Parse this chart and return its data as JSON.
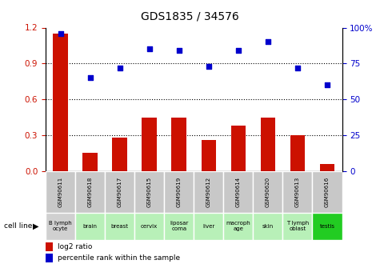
{
  "title": "GDS1835 / 34576",
  "gsm_labels": [
    "GSM90611",
    "GSM90618",
    "GSM90617",
    "GSM90615",
    "GSM90619",
    "GSM90612",
    "GSM90614",
    "GSM90620",
    "GSM90613",
    "GSM90616"
  ],
  "cell_lines": [
    "B lymph\nocyte",
    "brain",
    "breast",
    "cervix",
    "liposar\ncoma",
    "liver",
    "macroph\nage",
    "skin",
    "T lymph\noblast",
    "testis"
  ],
  "cell_bg_colors": [
    "#d0d0d0",
    "#b8f0b8",
    "#b8f0b8",
    "#b8f0b8",
    "#b8f0b8",
    "#b8f0b8",
    "#b8f0b8",
    "#b8f0b8",
    "#b8f0b8",
    "#22cc22"
  ],
  "log2_ratio": [
    1.15,
    0.15,
    0.28,
    0.45,
    0.45,
    0.26,
    0.38,
    0.45,
    0.3,
    0.06
  ],
  "percentile_rank": [
    96,
    65,
    72,
    85,
    84,
    73,
    84,
    90,
    72,
    60
  ],
  "bar_color": "#cc1100",
  "dot_color": "#0000cc",
  "left_ylim": [
    0,
    1.2
  ],
  "right_ylim": [
    0,
    100
  ],
  "left_yticks": [
    0,
    0.3,
    0.6,
    0.9,
    1.2
  ],
  "right_yticks": [
    0,
    25,
    50,
    75,
    100
  ],
  "right_yticklabels": [
    "0",
    "25",
    "50",
    "75",
    "100%"
  ],
  "left_tick_color": "#cc1100",
  "right_tick_color": "#0000cc",
  "dotted_lines": [
    0.3,
    0.6,
    0.9
  ],
  "gsm_bg_color": "#c8c8c8",
  "legend_red_label": "log2 ratio",
  "legend_blue_label": "percentile rank within the sample"
}
